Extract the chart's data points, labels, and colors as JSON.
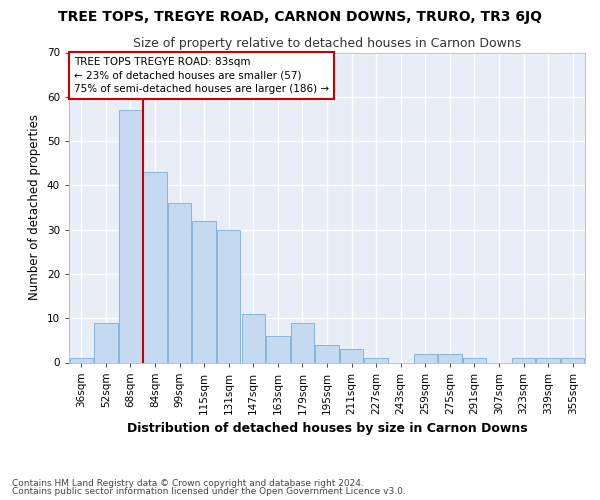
{
  "title": "TREE TOPS, TREGYE ROAD, CARNON DOWNS, TRURO, TR3 6JQ",
  "subtitle": "Size of property relative to detached houses in Carnon Downs",
  "xlabel": "Distribution of detached houses by size in Carnon Downs",
  "ylabel": "Number of detached properties",
  "categories": [
    "36sqm",
    "52sqm",
    "68sqm",
    "84sqm",
    "99sqm",
    "115sqm",
    "131sqm",
    "147sqm",
    "163sqm",
    "179sqm",
    "195sqm",
    "211sqm",
    "227sqm",
    "243sqm",
    "259sqm",
    "275sqm",
    "291sqm",
    "307sqm",
    "323sqm",
    "339sqm",
    "355sqm"
  ],
  "values": [
    1,
    9,
    57,
    43,
    36,
    32,
    30,
    11,
    6,
    9,
    4,
    3,
    1,
    0,
    2,
    2,
    1,
    0,
    1,
    1,
    1
  ],
  "bar_color": "#c5d9f0",
  "bar_edge_color": "#7aadd4",
  "vline_color": "#cc0000",
  "vline_pos": 2.5,
  "annotation_text": "TREE TOPS TREGYE ROAD: 83sqm\n← 23% of detached houses are smaller (57)\n75% of semi-detached houses are larger (186) →",
  "annotation_box_color": "#ffffff",
  "annotation_box_edge_color": "#cc0000",
  "background_color": "#ffffff",
  "plot_bg_color": "#e8eef8",
  "grid_color": "#ffffff",
  "footer_line1": "Contains HM Land Registry data © Crown copyright and database right 2024.",
  "footer_line2": "Contains public sector information licensed under the Open Government Licence v3.0.",
  "ylim": [
    0,
    70
  ],
  "title_fontsize": 10,
  "subtitle_fontsize": 9,
  "ylabel_fontsize": 8.5,
  "xlabel_fontsize": 9,
  "tick_fontsize": 7.5,
  "footer_fontsize": 6.5
}
